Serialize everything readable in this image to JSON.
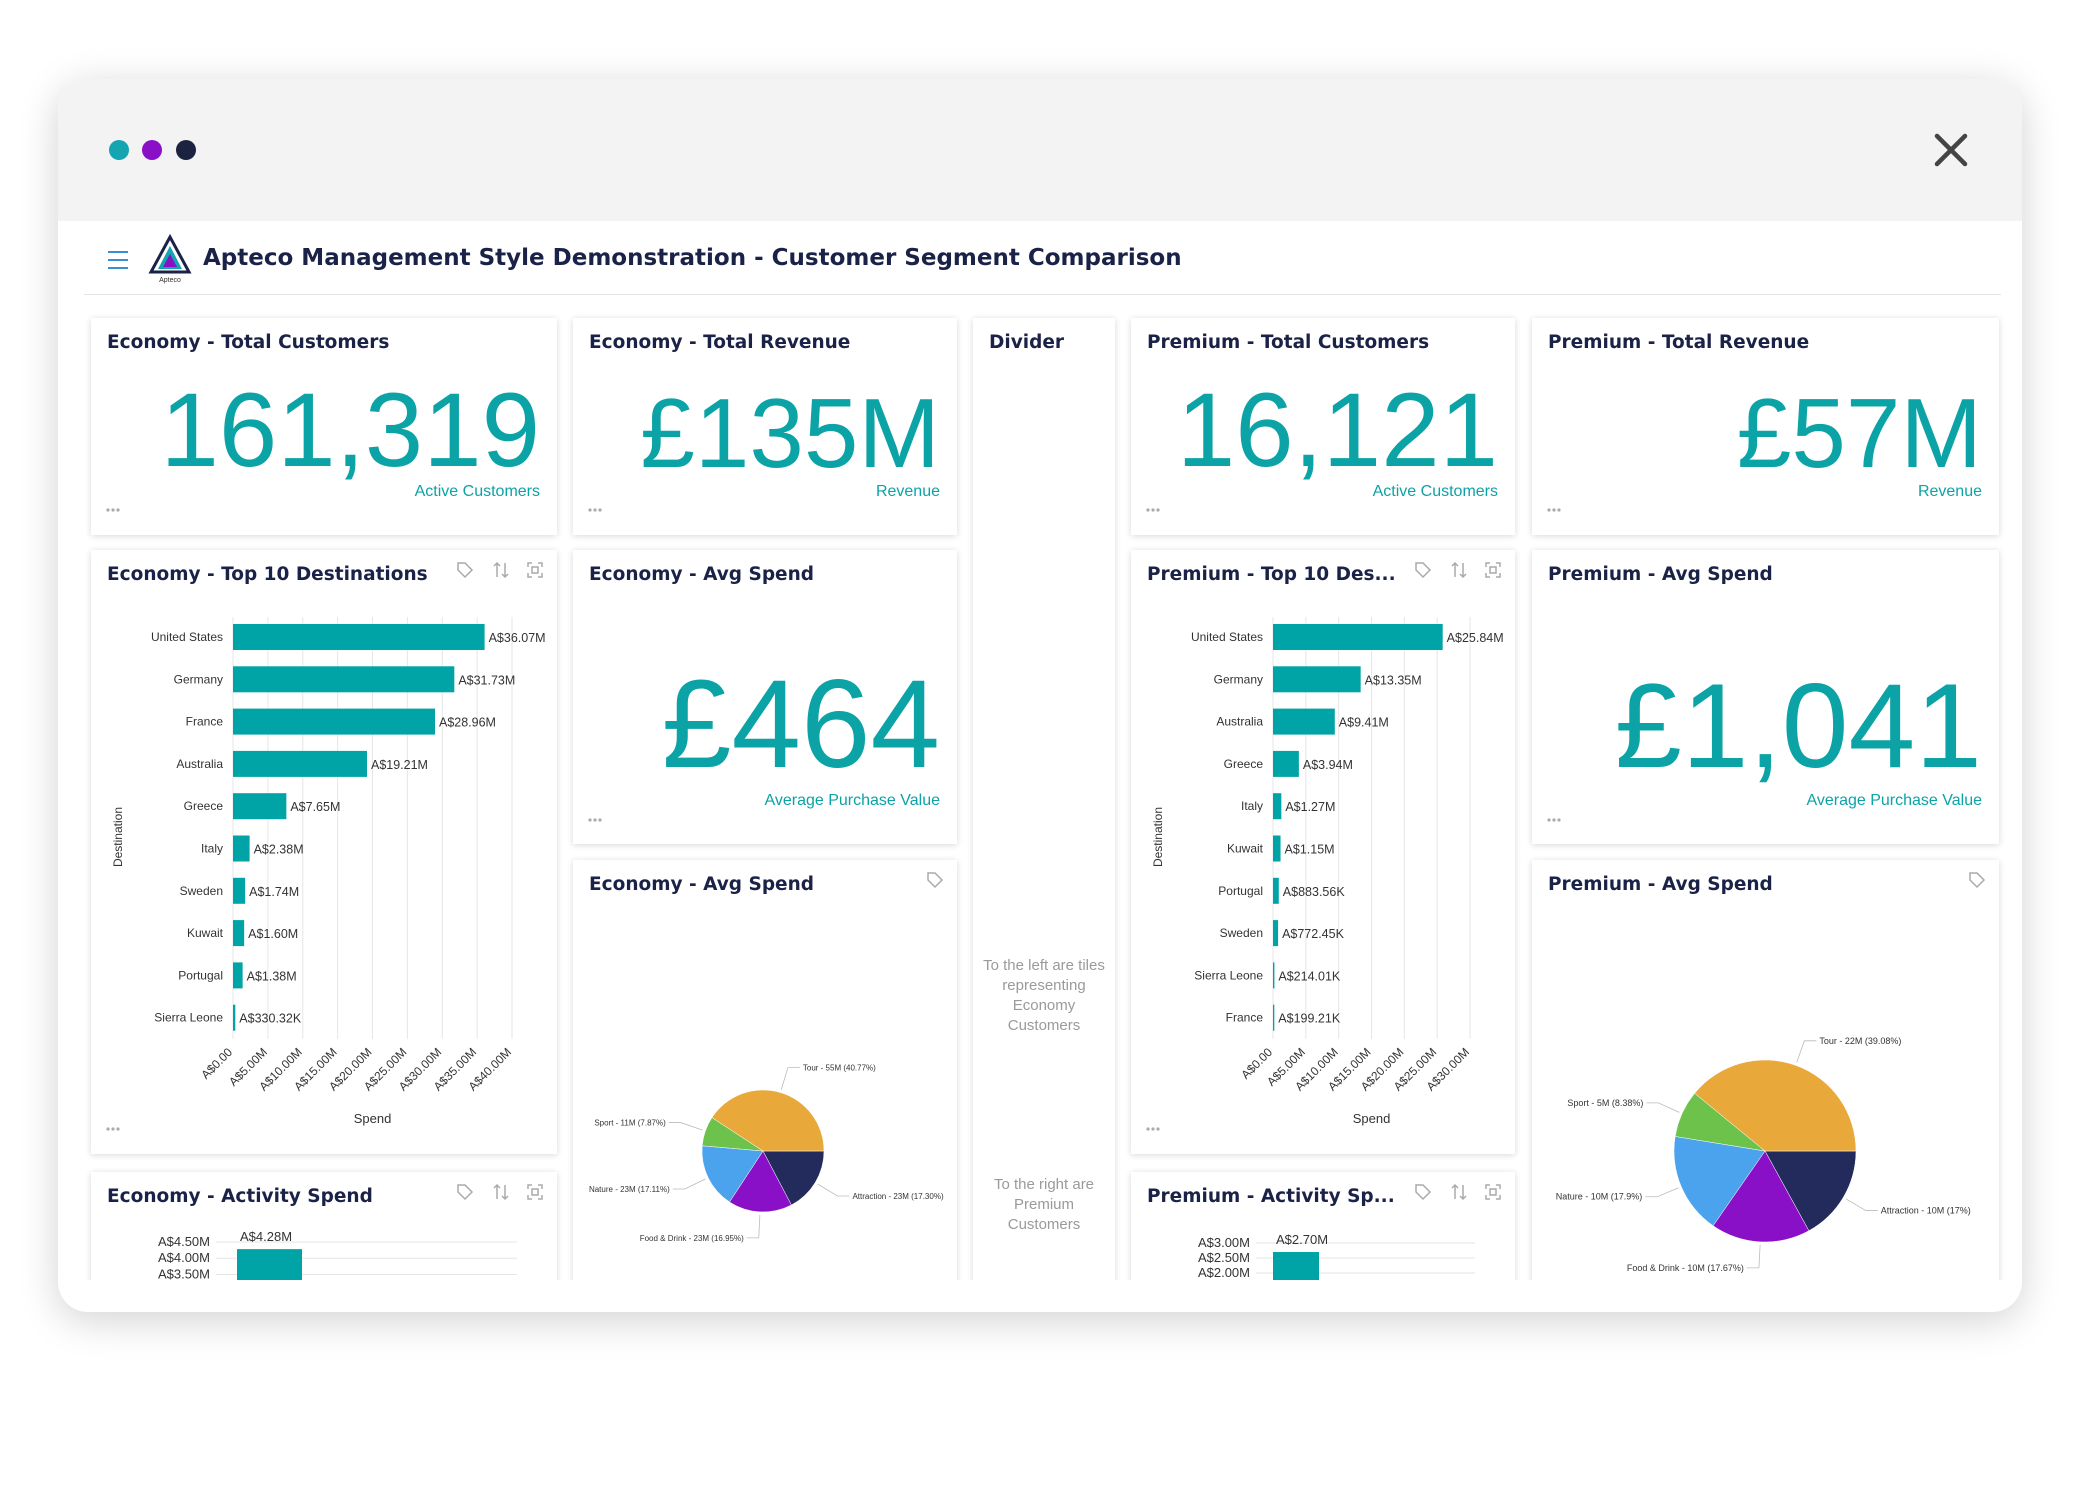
{
  "window": {
    "title": "Apteco Management Style Demonstration - Customer Segment Comparison",
    "logo_text": "Apteco"
  },
  "tiles": [
    {
      "title": "Economy - Total Customers",
      "value": "161,319",
      "caption": "Active Customers"
    },
    {
      "title": "Economy - Total Revenue",
      "value": "£135M",
      "caption": "Revenue"
    },
    {
      "title": "Divider",
      "texts": [
        "To the left are tiles representing Economy Customers",
        "To the right are Premium Customers"
      ]
    },
    {
      "title": "Premium - Total Customers",
      "value": "16,121",
      "caption": "Active Customers"
    },
    {
      "title": "Premium - Total Revenue",
      "value": "£57M",
      "caption": "Revenue"
    },
    {
      "title": "Economy - Top 10 Destinations",
      "chart_data": {
        "type": "hbar",
        "x_label": "Spend",
        "y_label": "Destination",
        "color": "#00a4a6",
        "grid": true,
        "categories": [
          "United States",
          "Germany",
          "France",
          "Australia",
          "Greece",
          "Italy",
          "Sweden",
          "Kuwait",
          "Portugal",
          "Sierra Leone"
        ],
        "values": [
          36.07,
          31.73,
          28.96,
          19.21,
          7.65,
          2.38,
          1.74,
          1.6,
          1.38,
          0.33032
        ],
        "value_labels": [
          "A$36.07M",
          "A$31.73M",
          "A$28.96M",
          "A$19.21M",
          "A$7.65M",
          "A$2.38M",
          "A$1.74M",
          "A$1.60M",
          "A$1.38M",
          "A$330.32K"
        ],
        "xlim": [
          0,
          40
        ],
        "xticks": [
          {
            "value": 0,
            "label": "A$0.00"
          },
          {
            "value": 5,
            "label": "A$5.00M"
          },
          {
            "value": 10,
            "label": "A$10.00M"
          },
          {
            "value": 15,
            "label": "A$15.00M"
          },
          {
            "value": 20,
            "label": "A$20.00M"
          },
          {
            "value": 25,
            "label": "A$25.00M"
          },
          {
            "value": 30,
            "label": "A$30.00M"
          },
          {
            "value": 35,
            "label": "A$35.00M"
          },
          {
            "value": 40,
            "label": "A$40.00M"
          }
        ]
      }
    },
    {
      "title": "Economy - Avg Spend",
      "value": "£464",
      "caption": "Average Purchase Value"
    },
    {
      "title": "Premium - Top 10 Des...",
      "chart_data": {
        "type": "hbar",
        "x_label": "Spend",
        "y_label": "Destination",
        "color": "#00a4a6",
        "grid": true,
        "categories": [
          "United States",
          "Germany",
          "Australia",
          "Greece",
          "Italy",
          "Kuwait",
          "Portugal",
          "Sweden",
          "Sierra Leone",
          "France"
        ],
        "values": [
          25.84,
          13.35,
          9.41,
          3.94,
          1.27,
          1.15,
          0.88356,
          0.77245,
          0.21401,
          0.19921
        ],
        "value_labels": [
          "A$25.84M",
          "A$13.35M",
          "A$9.41M",
          "A$3.94M",
          "A$1.27M",
          "A$1.15M",
          "A$883.56K",
          "A$772.45K",
          "A$214.01K",
          "A$199.21K"
        ],
        "xlim": [
          0,
          30
        ],
        "xticks": [
          {
            "value": 0,
            "label": "A$0.00"
          },
          {
            "value": 5,
            "label": "A$5.00M"
          },
          {
            "value": 10,
            "label": "A$10.00M"
          },
          {
            "value": 15,
            "label": "A$15.00M"
          },
          {
            "value": 20,
            "label": "A$20.00M"
          },
          {
            "value": 25,
            "label": "A$25.00M"
          },
          {
            "value": 30,
            "label": "A$30.00M"
          }
        ]
      }
    },
    {
      "title": "Premium - Avg Spend",
      "value": "£1,041",
      "caption": "Average Purchase Value"
    },
    {
      "title": "Economy - Avg Spend",
      "chart_data": {
        "type": "pie",
        "values": [
          17.3,
          16.95,
          17.11,
          7.87,
          40.77
        ],
        "value_labels": [
          "Attraction - 23M (17.30%)",
          "Food & Drink - 23M (16.95%)",
          "Nature - 23M (17.11%)",
          "Sport - 11M (7.87%)",
          "Tour - 55M (40.77%)"
        ],
        "colors": [
          "#232b5c",
          "#8a10c8",
          "#4aa3ec",
          "#6cc24a",
          "#e9a83a"
        ]
      }
    },
    {
      "title": "Premium - Avg Spend",
      "chart_data": {
        "type": "pie",
        "values": [
          17,
          17.67,
          17.9,
          8.38,
          39.08
        ],
        "value_labels": [
          "Attraction - 10M (17%)",
          "Food & Drink - 10M (17.67%)",
          "Nature - 10M (17.9%)",
          "Sport - 5M (8.38%)",
          "Tour - 22M (39.08%)"
        ],
        "colors": [
          "#232b5c",
          "#8a10c8",
          "#4aa3ec",
          "#6cc24a",
          "#e9a83a"
        ]
      }
    },
    {
      "title": "Economy - Activity Spend",
      "chart_data": {
        "type": "vbar",
        "color": "#00a4a6",
        "grid": true,
        "values": [
          4.28
        ],
        "value_labels": [
          "A$4.28M"
        ],
        "ylim": [
          0,
          4.5
        ],
        "yticks": [
          {
            "value": 4.5,
            "label": "A$4.50M"
          },
          {
            "value": 4,
            "label": "A$4.00M"
          },
          {
            "value": 3.5,
            "label": "A$3.50M"
          }
        ]
      }
    },
    {
      "title": "Premium - Activity Sp...",
      "chart_data": {
        "type": "vbar",
        "color": "#00a4a6",
        "grid": true,
        "values": [
          2.7
        ],
        "value_labels": [
          "A$2.70M"
        ],
        "ylim": [
          0,
          3
        ],
        "yticks": [
          {
            "value": 3,
            "label": "A$3.00M"
          },
          {
            "value": 2.5,
            "label": "A$2.50M"
          },
          {
            "value": 2,
            "label": "A$2.00M"
          }
        ]
      }
    }
  ]
}
